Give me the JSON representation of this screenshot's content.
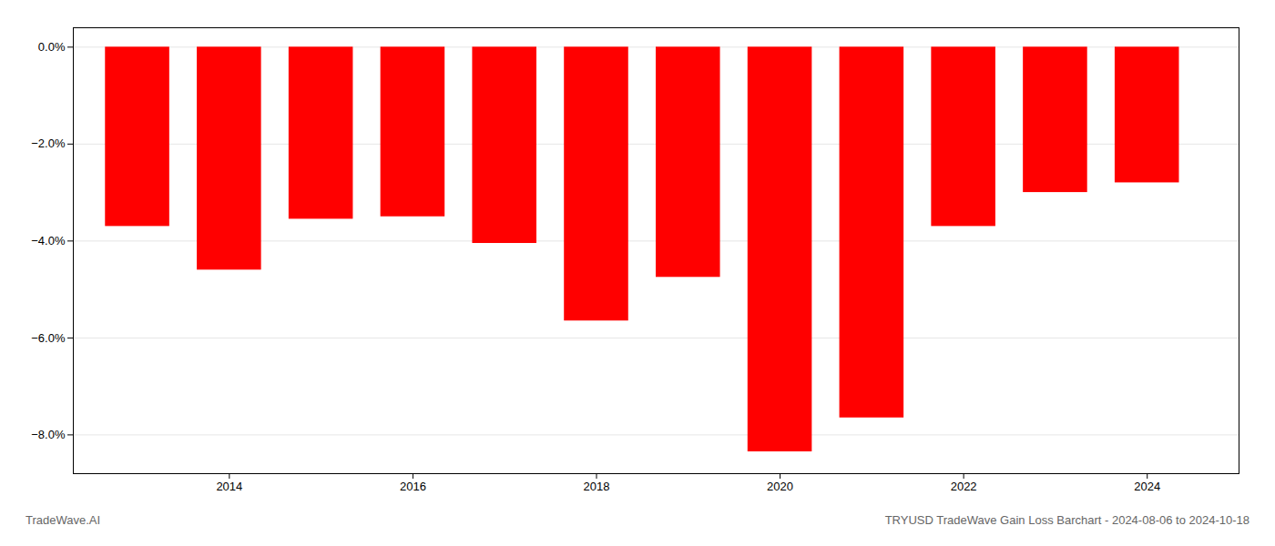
{
  "chart_data": {
    "type": "bar",
    "x": [
      2013,
      2014,
      2015,
      2016,
      2017,
      2018,
      2019,
      2020,
      2021,
      2022,
      2023,
      2024
    ],
    "values": [
      -3.7,
      -4.6,
      -3.55,
      -3.5,
      -4.05,
      -5.65,
      -4.75,
      -8.35,
      -7.65,
      -3.7,
      -3.0,
      -2.8
    ],
    "color": "#ff0000",
    "xlim": [
      2012.3,
      2025.0
    ],
    "xticks": [
      2014,
      2016,
      2018,
      2020,
      2022,
      2024
    ],
    "ylim": [
      -8.8,
      0.4
    ],
    "yticks": [
      {
        "value": 0.0,
        "label": "0.0%"
      },
      {
        "value": -2.0,
        "label": "−2.0%"
      },
      {
        "value": -4.0,
        "label": "−4.0%"
      },
      {
        "value": -6.0,
        "label": "−6.0%"
      },
      {
        "value": -8.0,
        "label": "−8.0%"
      }
    ],
    "grid": true,
    "annotations": [
      "TradeWave.AI",
      "TRYUSD TradeWave Gain Loss Barchart - 2024-08-06 to 2024-10-18"
    ]
  }
}
